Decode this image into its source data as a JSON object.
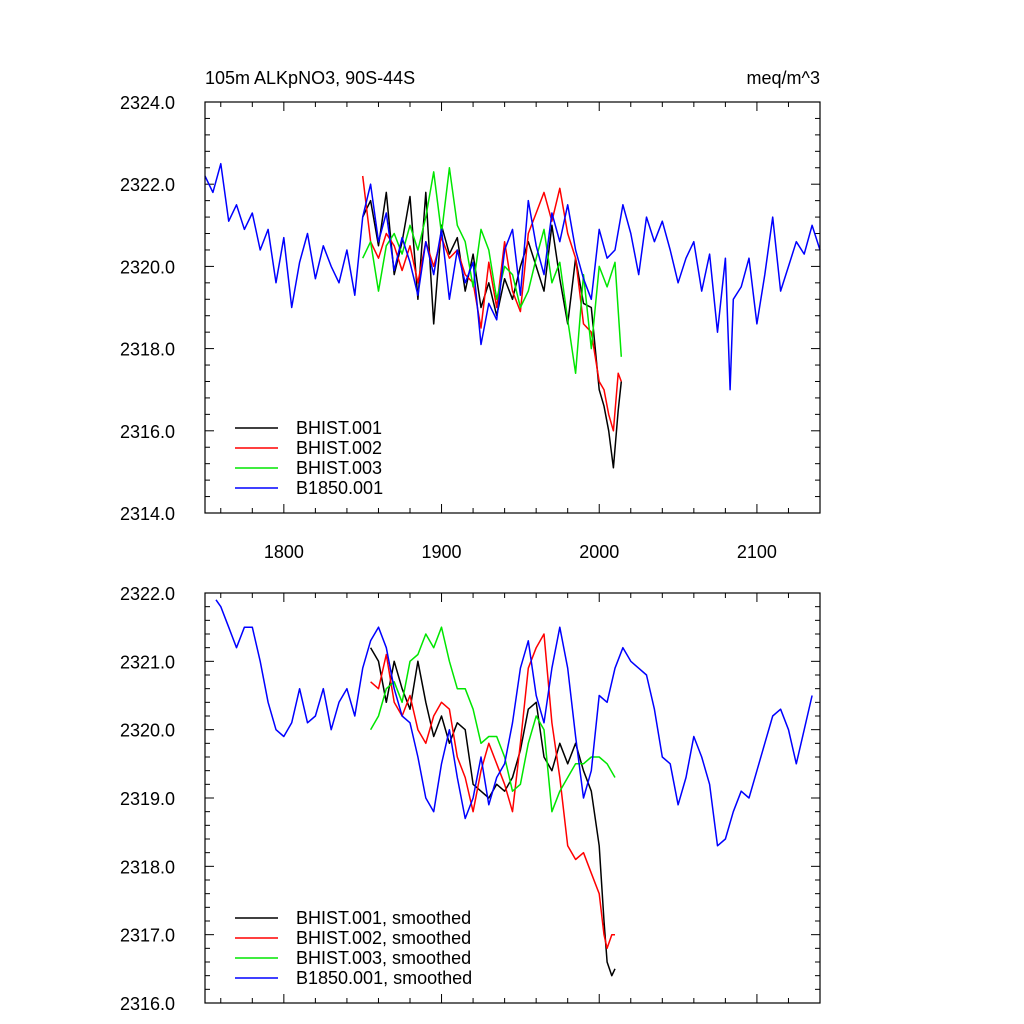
{
  "colors": {
    "BHIST.001": "#000000",
    "BHIST.002": "#ff0000",
    "BHIST.003": "#00e600",
    "B1850.001": "#0000ff"
  },
  "chart_data": [
    {
      "type": "line",
      "title_left": "105m ALKpNO3, 90S-44S",
      "title_right": "meq/m^3",
      "xlim": [
        1750,
        2140
      ],
      "ylim": [
        2314,
        2324
      ],
      "xticks": [
        1800,
        1900,
        2000,
        2100
      ],
      "xtick_labels": [
        "1800",
        "1900",
        "2000",
        "2100"
      ],
      "yticks": [
        2314,
        2316,
        2318,
        2320,
        2322,
        2324
      ],
      "ytick_labels": [
        "2314.0",
        "2316.0",
        "2318.0",
        "2320.0",
        "2322.0",
        "2324.0"
      ],
      "legend_placement": "bottom-left",
      "series": [
        {
          "name": "BHIST.001",
          "x": [
            1850,
            1855,
            1860,
            1865,
            1870,
            1875,
            1880,
            1885,
            1890,
            1895,
            1900,
            1905,
            1910,
            1915,
            1920,
            1925,
            1930,
            1935,
            1940,
            1945,
            1950,
            1955,
            1960,
            1965,
            1970,
            1975,
            1980,
            1985,
            1990,
            1995,
            2000,
            2003,
            2006,
            2009,
            2012,
            2014
          ],
          "values": [
            2321.2,
            2321.6,
            2320.5,
            2321.8,
            2319.8,
            2320.6,
            2321.7,
            2319.2,
            2321.8,
            2318.6,
            2321.0,
            2320.3,
            2320.7,
            2319.4,
            2320.3,
            2319.0,
            2319.6,
            2318.8,
            2319.7,
            2319.2,
            2320.0,
            2320.6,
            2320.0,
            2319.4,
            2321.0,
            2319.7,
            2318.6,
            2320.2,
            2319.1,
            2319.0,
            2317.0,
            2316.6,
            2316.0,
            2315.1,
            2316.5,
            2317.2
          ]
        },
        {
          "name": "BHIST.002",
          "x": [
            1850,
            1855,
            1860,
            1865,
            1870,
            1875,
            1880,
            1885,
            1890,
            1895,
            1900,
            1905,
            1910,
            1915,
            1920,
            1925,
            1930,
            1935,
            1940,
            1945,
            1950,
            1955,
            1960,
            1965,
            1970,
            1975,
            1980,
            1985,
            1990,
            1995,
            2000,
            2003,
            2006,
            2009,
            2012,
            2014
          ],
          "values": [
            2322.2,
            2320.6,
            2320.2,
            2320.8,
            2320.5,
            2319.9,
            2320.5,
            2319.6,
            2320.6,
            2320.0,
            2320.7,
            2320.2,
            2320.4,
            2319.8,
            2319.6,
            2318.5,
            2320.1,
            2319.0,
            2320.6,
            2319.4,
            2318.9,
            2320.8,
            2321.3,
            2321.8,
            2321.1,
            2321.9,
            2320.8,
            2320.2,
            2318.6,
            2318.4,
            2317.2,
            2317.0,
            2316.4,
            2316.0,
            2317.4,
            2317.2
          ]
        },
        {
          "name": "BHIST.003",
          "x": [
            1850,
            1855,
            1860,
            1865,
            1870,
            1875,
            1880,
            1885,
            1890,
            1895,
            1900,
            1905,
            1910,
            1915,
            1920,
            1925,
            1930,
            1935,
            1940,
            1945,
            1950,
            1955,
            1960,
            1965,
            1970,
            1975,
            1980,
            1985,
            1990,
            1995,
            2000,
            2005,
            2010,
            2014
          ],
          "values": [
            2320.2,
            2320.6,
            2319.4,
            2320.5,
            2320.8,
            2320.3,
            2321.0,
            2320.4,
            2321.2,
            2322.3,
            2320.8,
            2322.4,
            2321.0,
            2320.6,
            2319.5,
            2320.9,
            2320.4,
            2319.2,
            2320.0,
            2319.8,
            2319.0,
            2319.4,
            2320.2,
            2320.9,
            2319.6,
            2320.1,
            2318.7,
            2317.4,
            2319.8,
            2318.0,
            2320.0,
            2319.5,
            2320.1,
            2317.8
          ]
        },
        {
          "name": "B1850.001",
          "x": [
            1750,
            1755,
            1760,
            1765,
            1770,
            1775,
            1780,
            1785,
            1790,
            1795,
            1800,
            1805,
            1810,
            1815,
            1820,
            1825,
            1830,
            1835,
            1840,
            1845,
            1850,
            1855,
            1860,
            1865,
            1870,
            1875,
            1880,
            1885,
            1890,
            1895,
            1900,
            1905,
            1910,
            1915,
            1920,
            1925,
            1930,
            1935,
            1940,
            1945,
            1950,
            1955,
            1960,
            1965,
            1970,
            1975,
            1980,
            1985,
            1990,
            1995,
            2000,
            2005,
            2010,
            2015,
            2020,
            2025,
            2030,
            2035,
            2040,
            2045,
            2050,
            2055,
            2060,
            2065,
            2070,
            2075,
            2080,
            2083,
            2085,
            2090,
            2095,
            2100,
            2105,
            2110,
            2115,
            2120,
            2125,
            2130,
            2135,
            2140
          ],
          "values": [
            2322.2,
            2321.8,
            2322.5,
            2321.1,
            2321.5,
            2320.9,
            2321.3,
            2320.4,
            2320.9,
            2319.6,
            2320.7,
            2319.0,
            2320.1,
            2320.8,
            2319.7,
            2320.5,
            2320.0,
            2319.6,
            2320.4,
            2319.3,
            2321.2,
            2322.0,
            2320.6,
            2321.3,
            2319.9,
            2320.7,
            2320.1,
            2319.3,
            2320.6,
            2319.8,
            2320.9,
            2319.2,
            2320.4,
            2319.6,
            2320.1,
            2318.1,
            2319.1,
            2318.7,
            2320.4,
            2320.9,
            2319.3,
            2321.6,
            2320.5,
            2319.8,
            2321.3,
            2320.6,
            2321.5,
            2320.4,
            2319.7,
            2319.2,
            2320.9,
            2320.2,
            2320.4,
            2321.5,
            2320.8,
            2319.8,
            2321.2,
            2320.6,
            2321.1,
            2320.4,
            2319.6,
            2320.2,
            2320.6,
            2319.4,
            2320.3,
            2318.4,
            2320.2,
            2317.0,
            2319.2,
            2319.5,
            2320.2,
            2318.6,
            2319.8,
            2321.2,
            2319.4,
            2320.0,
            2320.6,
            2320.3,
            2321.0,
            2320.4
          ]
        }
      ]
    },
    {
      "type": "line",
      "title_left": "",
      "title_right": "",
      "xlim": [
        1750,
        2140
      ],
      "ylim": [
        2316,
        2322
      ],
      "xticks": [
        1800,
        1900,
        2000,
        2100
      ],
      "xtick_labels": [],
      "yticks": [
        2316,
        2317,
        2318,
        2319,
        2320,
        2321,
        2322
      ],
      "ytick_labels": [
        "2316.0",
        "2317.0",
        "2318.0",
        "2319.0",
        "2320.0",
        "2321.0",
        "2322.0"
      ],
      "legend_placement": "bottom-left",
      "series": [
        {
          "name": "BHIST.001, smoothed",
          "x": [
            1855,
            1860,
            1865,
            1870,
            1875,
            1880,
            1885,
            1890,
            1895,
            1900,
            1905,
            1910,
            1915,
            1920,
            1925,
            1930,
            1935,
            1940,
            1945,
            1950,
            1955,
            1960,
            1965,
            1970,
            1975,
            1980,
            1985,
            1990,
            1995,
            2000,
            2003,
            2005,
            2008,
            2010
          ],
          "values": [
            2321.2,
            2321.0,
            2320.4,
            2321.0,
            2320.6,
            2320.3,
            2321.0,
            2320.4,
            2319.9,
            2320.2,
            2319.8,
            2320.1,
            2320.0,
            2319.2,
            2319.1,
            2319.0,
            2319.2,
            2319.1,
            2319.3,
            2319.7,
            2320.3,
            2320.4,
            2319.6,
            2319.4,
            2319.8,
            2319.5,
            2319.8,
            2319.4,
            2319.1,
            2318.3,
            2317.2,
            2316.6,
            2316.4,
            2316.5
          ]
        },
        {
          "name": "BHIST.002, smoothed",
          "x": [
            1855,
            1860,
            1865,
            1870,
            1875,
            1880,
            1885,
            1890,
            1895,
            1900,
            1905,
            1910,
            1915,
            1920,
            1925,
            1930,
            1935,
            1940,
            1945,
            1950,
            1955,
            1960,
            1965,
            1970,
            1975,
            1980,
            1985,
            1990,
            1995,
            2000,
            2003,
            2005,
            2008,
            2010
          ],
          "values": [
            2320.7,
            2320.6,
            2321.1,
            2320.4,
            2320.2,
            2320.5,
            2320.0,
            2319.8,
            2320.2,
            2320.4,
            2320.3,
            2319.6,
            2319.3,
            2318.8,
            2319.4,
            2319.8,
            2319.5,
            2319.2,
            2318.8,
            2319.8,
            2320.9,
            2321.2,
            2321.4,
            2320.1,
            2319.3,
            2318.3,
            2318.1,
            2318.2,
            2317.9,
            2317.6,
            2317.0,
            2316.8,
            2317.0,
            2317.0
          ]
        },
        {
          "name": "BHIST.003, smoothed",
          "x": [
            1855,
            1860,
            1865,
            1870,
            1875,
            1880,
            1885,
            1890,
            1895,
            1900,
            1905,
            1910,
            1915,
            1920,
            1925,
            1930,
            1935,
            1940,
            1945,
            1950,
            1955,
            1960,
            1965,
            1970,
            1975,
            1980,
            1985,
            1990,
            1995,
            2000,
            2005,
            2010
          ],
          "values": [
            2320.0,
            2320.2,
            2320.6,
            2320.7,
            2320.4,
            2321.0,
            2321.1,
            2321.4,
            2321.2,
            2321.5,
            2321.0,
            2320.6,
            2320.6,
            2320.3,
            2319.8,
            2319.9,
            2319.9,
            2319.6,
            2319.1,
            2319.2,
            2319.8,
            2320.2,
            2320.0,
            2318.8,
            2319.1,
            2319.3,
            2319.5,
            2319.5,
            2319.6,
            2319.6,
            2319.5,
            2319.3
          ]
        },
        {
          "name": "B1850.001, smoothed",
          "x": [
            1757,
            1760,
            1765,
            1770,
            1775,
            1780,
            1785,
            1790,
            1795,
            1800,
            1805,
            1810,
            1815,
            1820,
            1825,
            1830,
            1835,
            1840,
            1845,
            1850,
            1855,
            1860,
            1865,
            1870,
            1875,
            1880,
            1885,
            1890,
            1895,
            1900,
            1905,
            1910,
            1915,
            1920,
            1925,
            1930,
            1935,
            1940,
            1945,
            1950,
            1955,
            1960,
            1965,
            1970,
            1975,
            1980,
            1985,
            1990,
            1995,
            2000,
            2005,
            2010,
            2015,
            2020,
            2025,
            2030,
            2035,
            2040,
            2045,
            2050,
            2055,
            2060,
            2065,
            2070,
            2075,
            2080,
            2085,
            2090,
            2095,
            2100,
            2105,
            2110,
            2115,
            2120,
            2125,
            2130,
            2135
          ],
          "values": [
            2321.9,
            2321.8,
            2321.5,
            2321.2,
            2321.5,
            2321.5,
            2321.0,
            2320.4,
            2320.0,
            2319.9,
            2320.1,
            2320.6,
            2320.1,
            2320.2,
            2320.6,
            2320.0,
            2320.4,
            2320.6,
            2320.2,
            2320.9,
            2321.3,
            2321.5,
            2321.2,
            2320.6,
            2320.2,
            2320.1,
            2319.6,
            2319.0,
            2318.8,
            2319.5,
            2320.0,
            2319.3,
            2318.7,
            2319.0,
            2319.6,
            2318.9,
            2319.3,
            2319.5,
            2320.1,
            2320.9,
            2321.3,
            2320.5,
            2320.1,
            2320.9,
            2321.5,
            2320.9,
            2319.9,
            2319.0,
            2319.4,
            2320.5,
            2320.4,
            2320.9,
            2321.2,
            2321.0,
            2320.9,
            2320.8,
            2320.3,
            2319.6,
            2319.5,
            2318.9,
            2319.3,
            2319.9,
            2319.6,
            2319.2,
            2318.3,
            2318.4,
            2318.8,
            2319.1,
            2319.0,
            2319.4,
            2319.8,
            2320.2,
            2320.3,
            2320.0,
            2319.5,
            2320.0,
            2320.5
          ]
        }
      ]
    }
  ]
}
